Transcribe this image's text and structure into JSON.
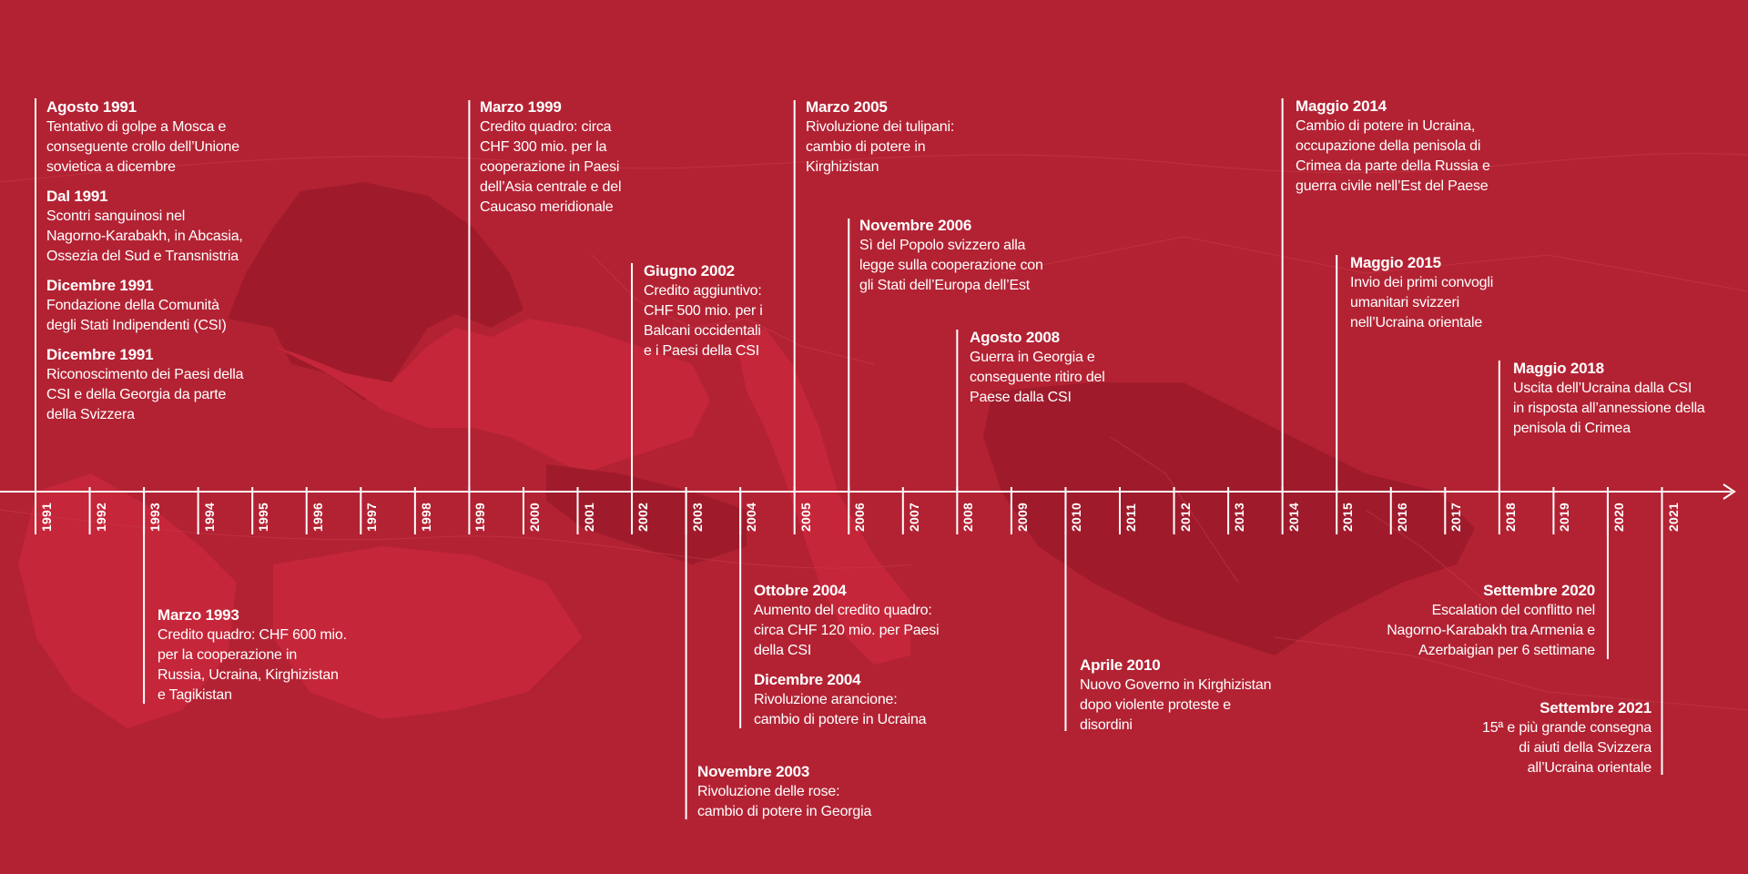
{
  "colors": {
    "background": "#b32233",
    "land_dark": "#9f1b2c",
    "land_light": "#c52639",
    "line": "#ffffff"
  },
  "years": [
    "1991",
    "1992",
    "1993",
    "1994",
    "1995",
    "1996",
    "1997",
    "1998",
    "1999",
    "2000",
    "2001",
    "2002",
    "2003",
    "2004",
    "2005",
    "2006",
    "2007",
    "2008",
    "2009",
    "2010",
    "2011",
    "2012",
    "2013",
    "2014",
    "2015",
    "2016",
    "2017",
    "2018",
    "2019",
    "2020",
    "2021"
  ],
  "events": {
    "e1991a": {
      "date": "Agosto 1991",
      "desc": "Tentativo di golpe a Mosca e\nconseguente crollo dell’Unione\nsovietica a dicembre"
    },
    "e1991b": {
      "date": "Dal 1991",
      "desc": "Scontri sanguinosi nel\nNagorno-Karabakh, in Abcasia,\nOssezia del Sud e Transnistria"
    },
    "e1991c": {
      "date": "Dicembre 1991",
      "desc": "Fondazione della Comunità\ndegli Stati Indipendenti (CSI)"
    },
    "e1991d": {
      "date": "Dicembre 1991",
      "desc": "Riconoscimento dei Paesi della\nCSI e della Georgia da parte\ndella Svizzera"
    },
    "e1993": {
      "date": "Marzo 1993",
      "desc": "Credito quadro: CHF 600 mio.\nper la cooperazione in\nRussia, Ucraina, Kirghizistan\ne Tagikistan"
    },
    "e1999": {
      "date": "Marzo 1999",
      "desc": "Credito quadro: circa\nCHF 300 mio. per la\ncooperazione in Paesi\ndell’Asia centrale e del\nCaucaso meridionale"
    },
    "e2002": {
      "date": "Giugno 2002",
      "desc": "Credito aggiuntivo:\nCHF 500 mio. per i\nBalcani occidentali\ne i Paesi della CSI"
    },
    "e2003": {
      "date": "Novembre 2003",
      "desc": "Rivoluzione delle rose:\ncambio di potere in Georgia"
    },
    "e2004a": {
      "date": "Ottobre 2004",
      "desc": "Aumento del credito quadro:\ncirca CHF 120 mio. per Paesi\ndella CSI"
    },
    "e2004b": {
      "date": "Dicembre 2004",
      "desc": "Rivoluzione arancione:\ncambio di potere in Ucraina"
    },
    "e2005": {
      "date": "Marzo 2005",
      "desc": "Rivoluzione dei tulipani:\ncambio di potere in\nKirghizistan"
    },
    "e2006": {
      "date": "Novembre 2006",
      "desc": "Sì del Popolo svizzero alla\nlegge sulla cooperazione con\ngli Stati dell’Europa dell’Est"
    },
    "e2008": {
      "date": "Agosto 2008",
      "desc": "Guerra in Georgia e\nconseguente ritiro del\nPaese dalla CSI"
    },
    "e2010": {
      "date": "Aprile 2010",
      "desc": "Nuovo Governo in Kirghizistan\ndopo violente proteste e\ndisordini"
    },
    "e2014": {
      "date": "Maggio 2014",
      "desc": "Cambio di potere in Ucraina,\noccupazione della penisola di\nCrimea da parte della Russia e\nguerra civile nell’Est del Paese"
    },
    "e2015": {
      "date": "Maggio 2015",
      "desc": "Invio dei primi convogli\numanitari svizzeri\nnell’Ucraina orientale"
    },
    "e2018": {
      "date": "Maggio 2018",
      "desc": "Uscita dell’Ucraina dalla CSI\nin risposta all’annessione della\npenisola di Crimea"
    },
    "e2020": {
      "date": "Settembre 2020",
      "desc": "Escalation del conflitto nel\nNagorno-Karabakh tra Armenia e\nAzerbaigian per 6 settimane"
    },
    "e2021": {
      "date": "Settembre 2021",
      "desc": "15ª e più grande consegna\ndi aiuti della Svizzera\nall’Ucraina orientale"
    }
  }
}
